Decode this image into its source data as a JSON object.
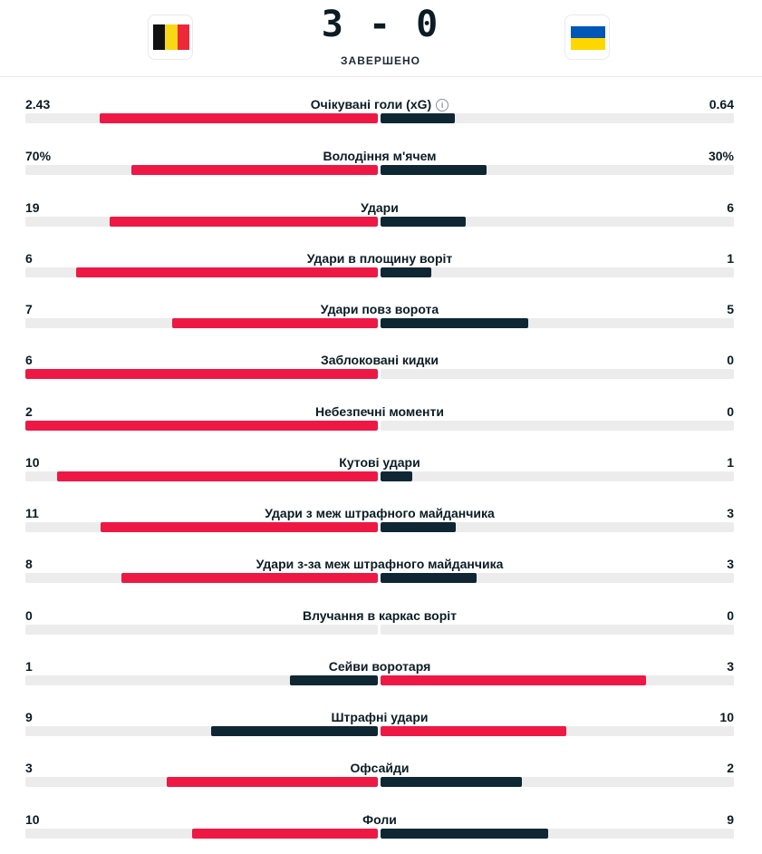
{
  "match": {
    "score": "3 - 0",
    "status": "ЗАВЕРШЕНО",
    "home_team_flag": "belgium-flag",
    "away_team_flag": "ukraine-flag"
  },
  "colors": {
    "win_bar": "#ee1845",
    "lose_bar": "#0e2733",
    "track": "#ececec",
    "belgium": [
      "#111111",
      "#f9d616",
      "#ed2939"
    ],
    "ukraine": [
      "#0057b7",
      "#ffd700"
    ]
  },
  "stats": [
    {
      "label": "Очікувані голи (xG)",
      "home": "2.43",
      "away": "0.64",
      "home_share": 0.79,
      "away_share": 0.21,
      "info": true
    },
    {
      "label": "Володіння м'ячем",
      "home": "70%",
      "away": "30%",
      "home_share": 0.7,
      "away_share": 0.3
    },
    {
      "label": "Удари",
      "home": "19",
      "away": "6",
      "home_share": 0.76,
      "away_share": 0.24
    },
    {
      "label": "Удари в площину воріт",
      "home": "6",
      "away": "1",
      "home_share": 0.857,
      "away_share": 0.143
    },
    {
      "label": "Удари повз ворота",
      "home": "7",
      "away": "5",
      "home_share": 0.583,
      "away_share": 0.417
    },
    {
      "label": "Заблоковані кидки",
      "home": "6",
      "away": "0",
      "home_share": 1.0,
      "away_share": 0.0
    },
    {
      "label": "Небезпечні моменти",
      "home": "2",
      "away": "0",
      "home_share": 1.0,
      "away_share": 0.0
    },
    {
      "label": "Кутові удари",
      "home": "10",
      "away": "1",
      "home_share": 0.909,
      "away_share": 0.091
    },
    {
      "label": "Удари з меж штрафного майданчика",
      "home": "11",
      "away": "3",
      "home_share": 0.786,
      "away_share": 0.214
    },
    {
      "label": "Удари з-за меж штрафного майданчика",
      "home": "8",
      "away": "3",
      "home_share": 0.727,
      "away_share": 0.273
    },
    {
      "label": "Влучання в каркас воріт",
      "home": "0",
      "away": "0",
      "home_share": 0.0,
      "away_share": 0.0
    },
    {
      "label": "Сейви воротаря",
      "home": "1",
      "away": "3",
      "home_share": 0.25,
      "away_share": 0.75
    },
    {
      "label": "Штрафні удари",
      "home": "9",
      "away": "10",
      "home_share": 0.474,
      "away_share": 0.526
    },
    {
      "label": "Офсайди",
      "home": "3",
      "away": "2",
      "home_share": 0.6,
      "away_share": 0.4
    },
    {
      "label": "Фоли",
      "home": "10",
      "away": "9",
      "home_share": 0.526,
      "away_share": 0.474
    }
  ]
}
